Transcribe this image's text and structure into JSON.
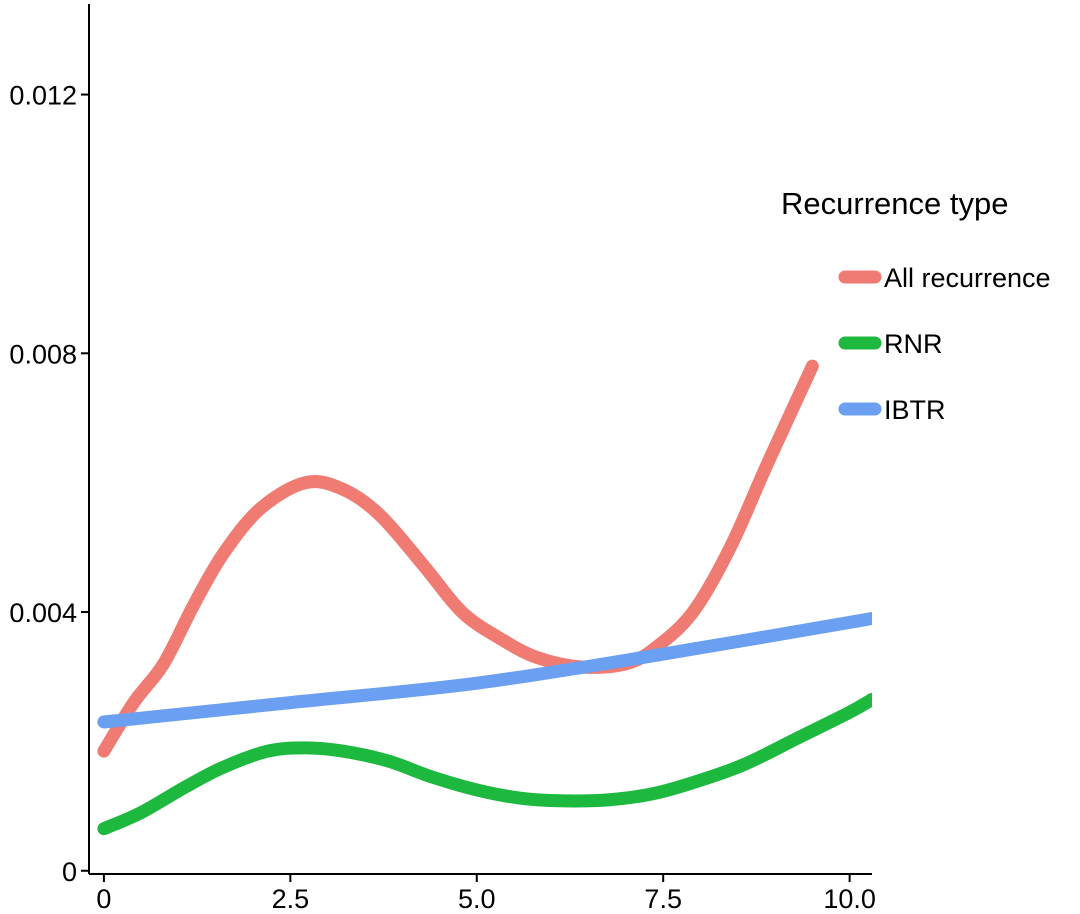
{
  "chart_data": {
    "type": "line",
    "title": "",
    "xlabel": "",
    "ylabel": "",
    "xlim": [
      -0.2,
      10.3
    ],
    "ylim": [
      -5e-05,
      0.0134
    ],
    "x_ticks": [
      {
        "value": 0,
        "label": "0"
      },
      {
        "value": 2.5,
        "label": "2.5"
      },
      {
        "value": 5.0,
        "label": "5.0"
      },
      {
        "value": 7.5,
        "label": "7.5"
      },
      {
        "value": 10.0,
        "label": "10.0"
      }
    ],
    "y_ticks": [
      {
        "value": 0,
        "label": "0"
      },
      {
        "value": 0.004,
        "label": "0.004"
      },
      {
        "value": 0.008,
        "label": "0.008"
      },
      {
        "value": 0.012,
        "label": "0.012"
      }
    ],
    "grid": false,
    "legend": {
      "title": "Recurrence type",
      "placement": "right",
      "items": [
        {
          "label": "All recurrence",
          "color": "#F07B72"
        },
        {
          "label": "RNR",
          "color": "#1DB93E"
        },
        {
          "label": "IBTR",
          "color": "#6B9FF2"
        }
      ]
    },
    "series": [
      {
        "name": "All recurrence",
        "color": "#F07B72",
        "points": [
          [
            0,
            0.00185
          ],
          [
            0.4,
            0.0026
          ],
          [
            0.8,
            0.0032
          ],
          [
            1.2,
            0.0041
          ],
          [
            1.6,
            0.0049
          ],
          [
            2.1,
            0.0056
          ],
          [
            2.7,
            0.006
          ],
          [
            3.2,
            0.0059
          ],
          [
            3.7,
            0.0055
          ],
          [
            4.3,
            0.0047
          ],
          [
            4.8,
            0.004
          ],
          [
            5.3,
            0.0036
          ],
          [
            5.8,
            0.0033
          ],
          [
            6.4,
            0.00315
          ],
          [
            7.0,
            0.0032
          ],
          [
            7.4,
            0.00345
          ],
          [
            7.9,
            0.004
          ],
          [
            8.4,
            0.005
          ],
          [
            8.9,
            0.0063
          ],
          [
            9.5,
            0.0078
          ]
        ]
      },
      {
        "name": "RNR",
        "color": "#1DB93E",
        "points": [
          [
            0,
            0.00065
          ],
          [
            0.5,
            0.0009
          ],
          [
            1.1,
            0.0013
          ],
          [
            1.6,
            0.0016
          ],
          [
            2.2,
            0.00185
          ],
          [
            2.7,
            0.0019
          ],
          [
            3.2,
            0.00185
          ],
          [
            3.8,
            0.0017
          ],
          [
            4.4,
            0.00145
          ],
          [
            5.0,
            0.00125
          ],
          [
            5.6,
            0.00112
          ],
          [
            6.2,
            0.00108
          ],
          [
            6.8,
            0.0011
          ],
          [
            7.4,
            0.0012
          ],
          [
            8.0,
            0.0014
          ],
          [
            8.6,
            0.00165
          ],
          [
            9.3,
            0.00205
          ],
          [
            10.0,
            0.00245
          ],
          [
            10.3,
            0.00265
          ]
        ]
      },
      {
        "name": "IBTR",
        "color": "#6B9FF2",
        "points": [
          [
            0,
            0.0023
          ],
          [
            2.5,
            0.0026
          ],
          [
            5.0,
            0.0029
          ],
          [
            7.5,
            0.00335
          ],
          [
            10.3,
            0.0039
          ]
        ]
      }
    ]
  }
}
